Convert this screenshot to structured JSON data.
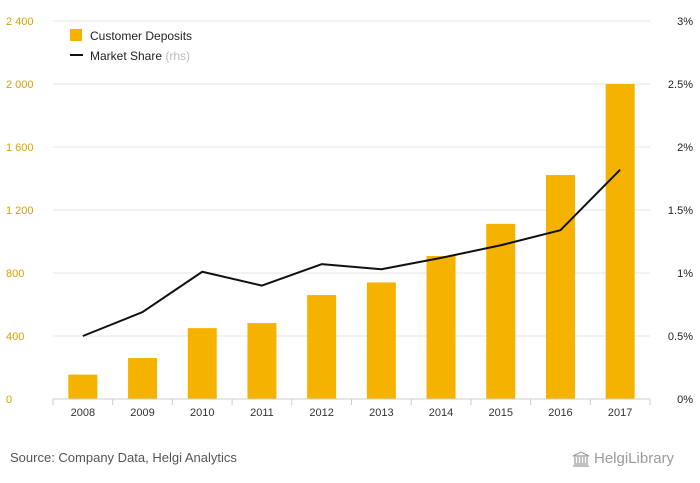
{
  "chart_data": {
    "type": "bar",
    "categories": [
      "2008",
      "2009",
      "2010",
      "2011",
      "2012",
      "2013",
      "2014",
      "2015",
      "2016",
      "2017"
    ],
    "series": [
      {
        "name": "Customer Deposits",
        "type": "bar",
        "axis": "left",
        "values": [
          155,
          260,
          450,
          482,
          660,
          740,
          908,
          1112,
          1422,
          2000
        ]
      },
      {
        "name": "Market Share",
        "type": "line",
        "axis": "right",
        "values": [
          0.5,
          0.69,
          1.01,
          0.9,
          1.07,
          1.03,
          1.12,
          1.22,
          1.34,
          1.82
        ]
      }
    ],
    "legend": [
      {
        "label": "Customer Deposits",
        "suffix": ""
      },
      {
        "label": "Market Share",
        "suffix": "(rhs)"
      }
    ],
    "y_left": {
      "min": 0,
      "max": 2400,
      "ticks": [
        0,
        400,
        800,
        1200,
        1600,
        2000,
        2400
      ],
      "tick_labels": [
        "0",
        "400",
        "800",
        "1 200",
        "1 600",
        "2 000",
        "2 400"
      ]
    },
    "y_right": {
      "min": 0,
      "max": 3,
      "ticks": [
        0,
        0.5,
        1,
        1.5,
        2,
        2.5,
        3
      ],
      "tick_labels": [
        "0%",
        "0.5%",
        "1%",
        "1.5%",
        "2%",
        "2.5%",
        "3%"
      ]
    },
    "legend_position": "top-left",
    "grid": true,
    "colors": {
      "bar": "#f5b300",
      "line": "#111111",
      "grid": "#e6e6e6",
      "left_ticks": "#d4a200"
    }
  },
  "footer": {
    "source": "Source: Company Data, Helgi Analytics",
    "logo_text": "HelgiLibrary"
  }
}
